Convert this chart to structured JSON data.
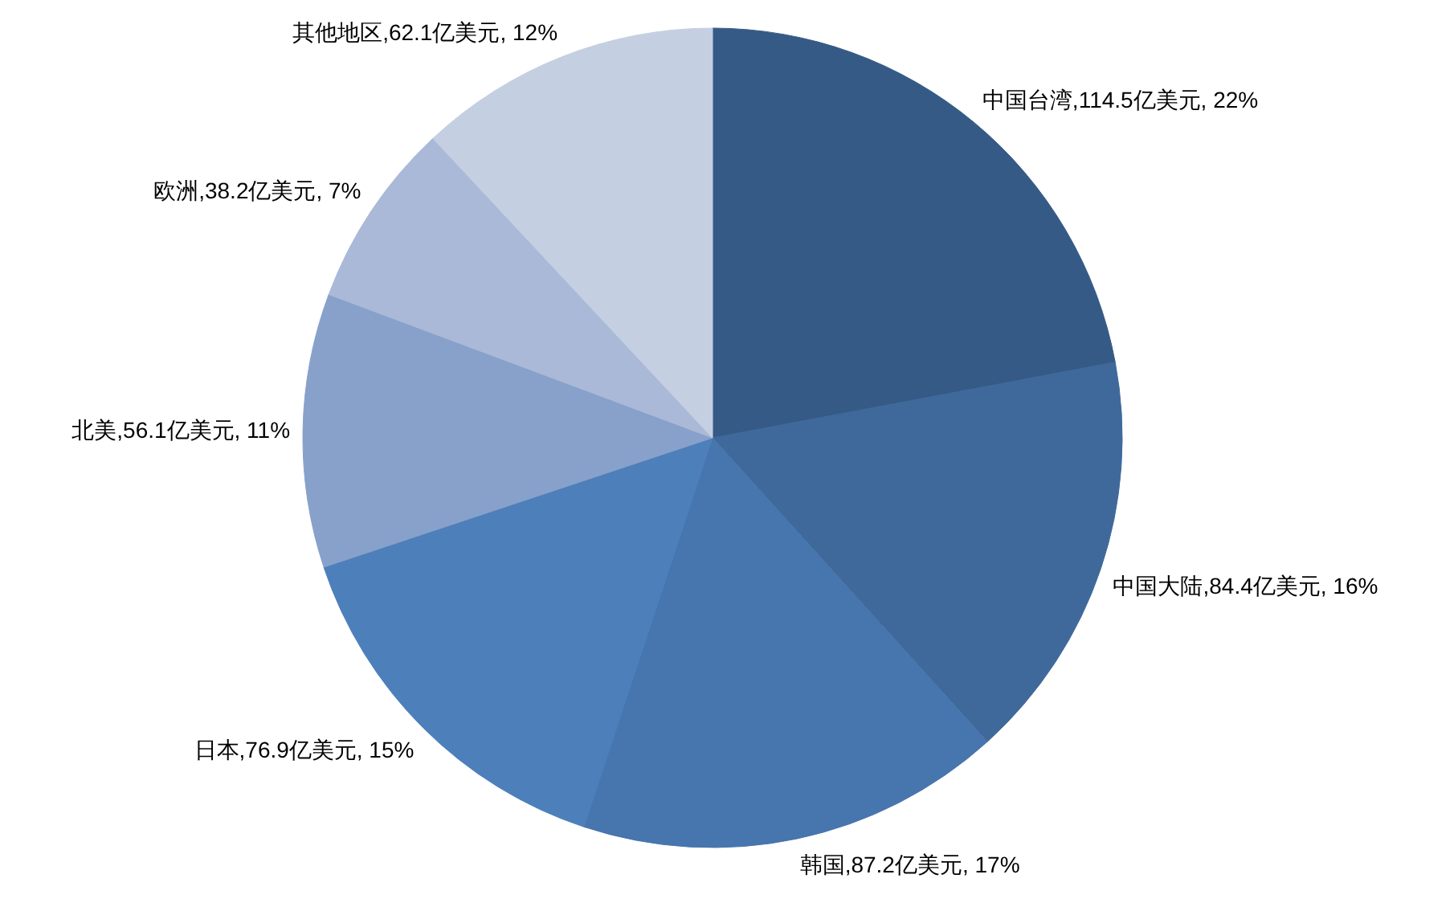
{
  "chart_data": {
    "type": "pie",
    "categories": [
      "中国台湾",
      "中国大陆",
      "韩国",
      "日本",
      "北美",
      "欧洲",
      "其他地区"
    ],
    "values": [
      114.5,
      84.4,
      87.2,
      76.9,
      56.1,
      38.2,
      62.1
    ],
    "value_labels": [
      ",114.5亿美元, 22%",
      ",84.4亿美元, 16%",
      ",87.2亿美元, 17%",
      ",76.9亿美元, 15%",
      ",56.1亿美元, 11%",
      ",38.2亿美元, 7%",
      ",62.1亿美元, 12%"
    ],
    "colors": [
      "#355a86",
      "#3f699b",
      "#4775ad",
      "#4d7fbb",
      "#87a1cb",
      "#aab9d7",
      "#c4cfe2"
    ]
  }
}
